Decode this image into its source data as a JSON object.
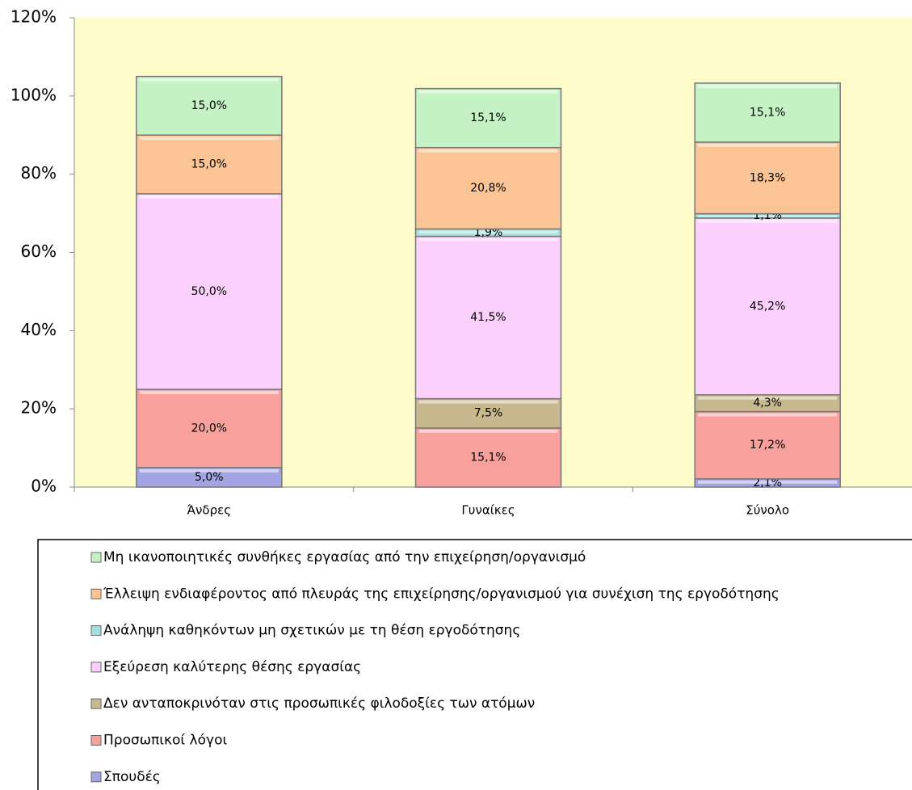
{
  "chart_data": {
    "type": "stacked_bar",
    "categories": [
      "Άνδρες",
      "Γυναίκες",
      "Σύνολο"
    ],
    "series": [
      {
        "name": "Σπουδές",
        "color": "#a4a4e4",
        "values": [
          5.0,
          null,
          2.1
        ],
        "value_labels": [
          "5,0%",
          null,
          "2,1%"
        ]
      },
      {
        "name": "Προσωπικοί λόγοι",
        "color": "#f7a09c",
        "values": [
          20.0,
          15.1,
          17.2
        ],
        "value_labels": [
          "20,0%",
          "15,1%",
          "17,2%"
        ]
      },
      {
        "name": "Δεν ανταποκρινόταν στις προσωπικές φιλοδοξίες των ατόμων",
        "color": "#c8b88e",
        "values": [
          null,
          7.5,
          4.3
        ],
        "value_labels": [
          null,
          "7,5%",
          "4,3%"
        ]
      },
      {
        "name": "Εξεύρεση καλύτερης θέσης εργασίας",
        "color": "#fcd0fc",
        "values": [
          50.0,
          41.5,
          45.2
        ],
        "value_labels": [
          "50,0%",
          "41,5%",
          "45,2%"
        ]
      },
      {
        "name": "Ανάληψη καθηκόντων μη σχετικών με τη θέση εργοδότησης",
        "color": "#a4dede",
        "values": [
          null,
          1.9,
          1.1
        ],
        "value_labels": [
          null,
          "1,9%",
          "1,1%"
        ]
      },
      {
        "name": "Έλλειψη ενδιαφέροντος από πλευράς της επιχείρησης/οργανισμού για συνέχιση της εργοδότησης",
        "color": "#fac494",
        "values": [
          15.0,
          20.8,
          18.3
        ],
        "value_labels": [
          "15,0%",
          "20,8%",
          "18,3%"
        ]
      },
      {
        "name": "Μη ικανοποιητικές συνθήκες εργασίας από την επιχείρηση/οργανισμό",
        "color": "#c4f2c4",
        "values": [
          15.0,
          15.1,
          15.1
        ],
        "value_labels": [
          "15,0%",
          "15,1%",
          "15,1%"
        ]
      }
    ],
    "ylim": [
      0,
      120
    ],
    "yticks": [
      {
        "value": 0,
        "label": "0%"
      },
      {
        "value": 20,
        "label": "20%"
      },
      {
        "value": 40,
        "label": "40%"
      },
      {
        "value": 60,
        "label": "60%"
      },
      {
        "value": 80,
        "label": "80%"
      },
      {
        "value": 100,
        "label": "100%"
      },
      {
        "value": 120,
        "label": "120%"
      }
    ],
    "plot_background": "#fdfbc9",
    "legend": "bottom"
  }
}
